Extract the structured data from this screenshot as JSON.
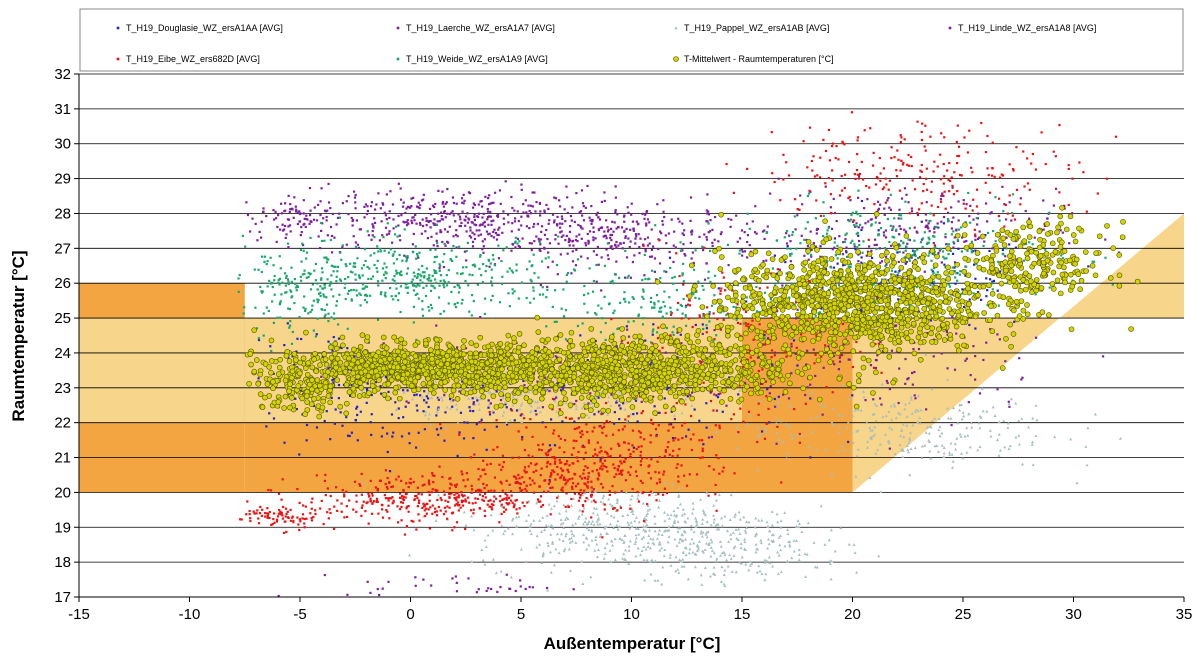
{
  "chart_data": {
    "type": "scatter",
    "title": "",
    "xlabel": "Außentemperatur [°C]",
    "ylabel": "Raumtemperatur [°C]",
    "xlim": [
      -15,
      35
    ],
    "ylim": [
      17,
      32
    ],
    "x_ticks": [
      "-15",
      "-10",
      "-5",
      "0",
      "5",
      "10",
      "15",
      "20",
      "25",
      "30",
      "35"
    ],
    "y_ticks": [
      "17",
      "18",
      "19",
      "20",
      "21",
      "22",
      "23",
      "24",
      "25",
      "26",
      "27",
      "28",
      "29",
      "30",
      "31",
      "32"
    ],
    "grid": "horizontal",
    "legend_position": "top",
    "comfort_bands": [
      {
        "color": "#F2A541",
        "polygon": [
          [
            -15,
            20
          ],
          [
            -7.5,
            20
          ],
          [
            -7.5,
            26
          ],
          [
            -15,
            26
          ]
        ]
      },
      {
        "color": "#F7D58A",
        "polygon": [
          [
            -15,
            22
          ],
          [
            -7.5,
            22
          ],
          [
            -7.5,
            25
          ],
          [
            -15,
            25
          ]
        ]
      },
      {
        "color": "#F2A541",
        "polygon": [
          [
            -7.5,
            20
          ],
          [
            20,
            20
          ],
          [
            20,
            25
          ],
          [
            -7.5,
            25
          ]
        ]
      },
      {
        "color": "#F7D58A",
        "polygon": [
          [
            -7.5,
            22
          ],
          [
            15,
            22
          ],
          [
            15,
            25
          ],
          [
            -7.5,
            25
          ]
        ]
      },
      {
        "color": "#F7D58A",
        "polygon": [
          [
            20,
            20
          ],
          [
            35,
            28
          ],
          [
            35,
            25
          ],
          [
            20,
            25
          ]
        ]
      }
    ],
    "series": [
      {
        "name": "T_H19_Douglasie_WZ_ersA1AA [AVG]",
        "color": "#2222CC",
        "marker": "dot",
        "clusters": [
          [
            0,
            22.5,
            5,
            1.2,
            160
          ],
          [
            10,
            23,
            6,
            1.3,
            180
          ],
          [
            22,
            26,
            6,
            1.2,
            160
          ],
          [
            -4,
            23.5,
            3,
            1,
            70
          ]
        ]
      },
      {
        "name": "T_H19_Laerche_WZ_ersA1A7 [AVG]",
        "color": "#7E1FA0",
        "marker": "dot",
        "clusters": [
          [
            2,
            27.8,
            6,
            0.8,
            420
          ],
          [
            10,
            27.3,
            5,
            0.8,
            280
          ],
          [
            -5,
            27.8,
            2.5,
            0.6,
            90
          ],
          [
            22,
            27.5,
            6,
            1,
            260
          ],
          [
            2,
            17.3,
            4,
            0.3,
            40
          ]
        ]
      },
      {
        "name": "T_H19_Pappel_WZ_ersA1AB [AVG]",
        "color": "#A7BFBF",
        "marker": "triangle",
        "clusters": [
          [
            10,
            19,
            6,
            1,
            480
          ],
          [
            22,
            21.8,
            6,
            1,
            260
          ],
          [
            15,
            18.3,
            4,
            0.8,
            150
          ],
          [
            5,
            22.7,
            5,
            0.6,
            180
          ]
        ]
      },
      {
        "name": "T_H19_Linde_WZ_ersA1A8 [AVG]",
        "color": "#7E1FA0",
        "marker": "dot",
        "clusters": [
          [
            20,
            23.7,
            8,
            1.5,
            180
          ],
          [
            5,
            23.5,
            6,
            1,
            120
          ]
        ]
      },
      {
        "name": "T_H19_Eibe_WZ_ers682D [AVG]",
        "color": "#EE1111",
        "marker": "square",
        "clusters": [
          [
            1,
            19.8,
            5,
            0.6,
            380
          ],
          [
            -6,
            19.3,
            1.5,
            0.3,
            80
          ],
          [
            8,
            20.5,
            4,
            0.7,
            260
          ],
          [
            23,
            29.2,
            6,
            1.2,
            240
          ],
          [
            15,
            24.5,
            5,
            1.5,
            200
          ],
          [
            10,
            21.5,
            6,
            1,
            180
          ]
        ]
      },
      {
        "name": "T_H19_Weide_WZ_ersA1A9 [AVG]",
        "color": "#18A86B",
        "marker": "dot",
        "clusters": [
          [
            0,
            26.2,
            6,
            0.9,
            420
          ],
          [
            -5,
            25.5,
            2.5,
            1.2,
            120
          ],
          [
            12,
            25.5,
            5,
            1,
            200
          ],
          [
            22,
            26.8,
            6,
            1.2,
            340
          ]
        ]
      },
      {
        "name": "T-Mittelwert - Raumtemperaturen [°C]",
        "color": "#D4D400",
        "marker": "circle",
        "clusters": [
          [
            0,
            23.6,
            5,
            0.55,
            800
          ],
          [
            10,
            23.5,
            6,
            0.8,
            900
          ],
          [
            20,
            25.4,
            5,
            1.2,
            1000
          ],
          [
            -5,
            23,
            2,
            0.6,
            120
          ],
          [
            28,
            26.5,
            3,
            1,
            240
          ]
        ]
      }
    ]
  }
}
